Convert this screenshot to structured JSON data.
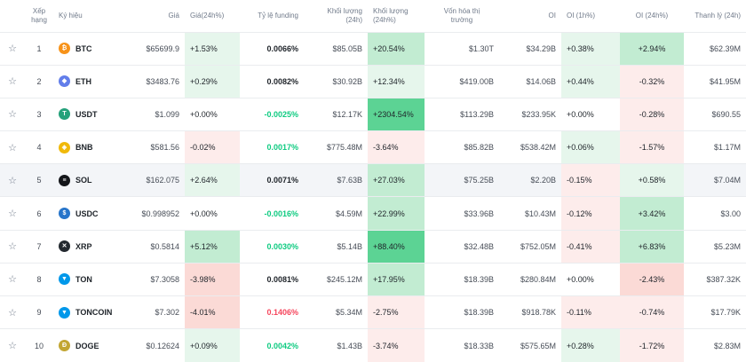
{
  "headers": {
    "star": "",
    "rank": "Xếp hạng",
    "symbol": "Ký hiệu",
    "price": "Giá",
    "change": "Giá(24h%)",
    "funding": "Tỷ lệ funding",
    "volume": "Khối lượng (24h)",
    "volume_pct": "Khối lượng (24h%)",
    "mcap_line1": "Vốn hóa thị",
    "mcap_line2": "trường",
    "oi": "OI",
    "oi_1h": "OI (1h%)",
    "oi_24h": "OI (24h%)",
    "liq": "Thanh lý (24h)"
  },
  "colors": {
    "pos_text": "#0ecb81",
    "neg_text": "#f6465d",
    "pos_light": "#e6f6ec",
    "pos_mid": "#c2ecd2",
    "pos_strong": "#5cd394",
    "neg_light": "#fdeceb",
    "neg_mid": "#fbdad6"
  },
  "rows": [
    {
      "rank": "1",
      "symbol": "BTC",
      "icon": "bitcoin-icon",
      "icon_color": "#f7931a",
      "glyph": "₿",
      "price": "$65699.9",
      "change": "+1.53%",
      "funding": "0.0066%",
      "volume": "$85.05B",
      "volume_pct": "+20.54%",
      "mcap": "$1.30T",
      "oi": "$34.29B",
      "oi_1h": "+0.38%",
      "oi_24h": "+2.94%",
      "liq": "$62.39M"
    },
    {
      "rank": "2",
      "symbol": "ETH",
      "icon": "ethereum-icon",
      "icon_color": "#627eea",
      "glyph": "◆",
      "price": "$3483.76",
      "change": "+0.29%",
      "funding": "0.0082%",
      "volume": "$30.92B",
      "volume_pct": "+12.34%",
      "mcap": "$419.00B",
      "oi": "$14.06B",
      "oi_1h": "+0.44%",
      "oi_24h": "-0.32%",
      "liq": "$41.95M"
    },
    {
      "rank": "3",
      "symbol": "USDT",
      "icon": "tether-icon",
      "icon_color": "#26a17b",
      "glyph": "T",
      "price": "$1.099",
      "change": "+0.00%",
      "funding": "-0.0025%",
      "volume": "$12.17K",
      "volume_pct": "+2304.54%",
      "mcap": "$113.29B",
      "oi": "$233.95K",
      "oi_1h": "+0.00%",
      "oi_24h": "-0.28%",
      "liq": "$690.55"
    },
    {
      "rank": "4",
      "symbol": "BNB",
      "icon": "bnb-icon",
      "icon_color": "#f0b90b",
      "glyph": "◈",
      "price": "$581.56",
      "change": "-0.02%",
      "funding": "0.0017%",
      "volume": "$775.48M",
      "volume_pct": "-3.64%",
      "mcap": "$85.82B",
      "oi": "$538.42M",
      "oi_1h": "+0.06%",
      "oi_24h": "-1.57%",
      "liq": "$1.17M"
    },
    {
      "rank": "5",
      "symbol": "SOL",
      "icon": "solana-icon",
      "icon_color": "#14161a",
      "glyph": "≡",
      "price": "$162.075",
      "change": "+2.64%",
      "funding": "0.0071%",
      "volume": "$7.63B",
      "volume_pct": "+27.03%",
      "mcap": "$75.25B",
      "oi": "$2.20B",
      "oi_1h": "-0.15%",
      "oi_24h": "+0.58%",
      "liq": "$7.04M"
    },
    {
      "rank": "6",
      "symbol": "USDC",
      "icon": "usdc-icon",
      "icon_color": "#2775ca",
      "glyph": "$",
      "price": "$0.998952",
      "change": "+0.00%",
      "funding": "-0.0016%",
      "volume": "$4.59M",
      "volume_pct": "+22.99%",
      "mcap": "$33.96B",
      "oi": "$10.43M",
      "oi_1h": "-0.12%",
      "oi_24h": "+3.42%",
      "liq": "$3.00"
    },
    {
      "rank": "7",
      "symbol": "XRP",
      "icon": "xrp-icon",
      "icon_color": "#23292f",
      "glyph": "✕",
      "price": "$0.5814",
      "change": "+5.12%",
      "funding": "0.0030%",
      "volume": "$5.14B",
      "volume_pct": "+88.40%",
      "mcap": "$32.48B",
      "oi": "$752.05M",
      "oi_1h": "-0.41%",
      "oi_24h": "+6.83%",
      "liq": "$5.23M"
    },
    {
      "rank": "8",
      "symbol": "TON",
      "icon": "ton-icon",
      "icon_color": "#0098ea",
      "glyph": "▼",
      "price": "$7.3058",
      "change": "-3.98%",
      "funding": "0.0081%",
      "volume": "$245.12M",
      "volume_pct": "+17.95%",
      "mcap": "$18.39B",
      "oi": "$280.84M",
      "oi_1h": "+0.00%",
      "oi_24h": "-2.43%",
      "liq": "$387.32K"
    },
    {
      "rank": "9",
      "symbol": "TONCOIN",
      "icon": "toncoin-icon",
      "icon_color": "#0098ea",
      "glyph": "▼",
      "price": "$7.302",
      "change": "-4.01%",
      "funding": "0.1406%",
      "volume": "$5.34M",
      "volume_pct": "-2.75%",
      "mcap": "$18.39B",
      "oi": "$918.78K",
      "oi_1h": "-0.11%",
      "oi_24h": "-0.74%",
      "liq": "$17.79K"
    },
    {
      "rank": "10",
      "symbol": "DOGE",
      "icon": "dogecoin-icon",
      "icon_color": "#c2a633",
      "glyph": "Ð",
      "price": "$0.12624",
      "change": "+0.09%",
      "funding": "0.0042%",
      "volume": "$1.43B",
      "volume_pct": "-3.74%",
      "mcap": "$18.33B",
      "oi": "$575.65M",
      "oi_1h": "+0.28%",
      "oi_24h": "-1.72%",
      "liq": "$2.83M"
    }
  ]
}
